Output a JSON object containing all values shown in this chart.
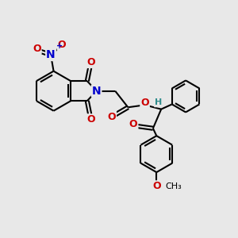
{
  "bg_color": "#e8e8e8",
  "bond_color": "#000000",
  "bond_width": 1.5,
  "dbo": 0.06,
  "atom_colors": {
    "N": "#0000cc",
    "O": "#cc0000",
    "H": "#2e8b8b",
    "C": "#000000"
  },
  "fs": 9,
  "fig_size": [
    3.0,
    3.0
  ],
  "dpi": 100
}
